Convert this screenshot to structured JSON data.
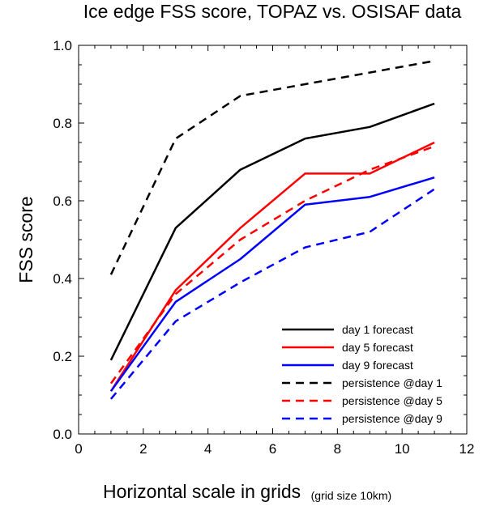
{
  "chart_data": {
    "type": "line",
    "title": "Ice edge FSS score, TOPAZ vs. OSISAF data",
    "xlabel": "Horizontal scale in grids",
    "xlabel_note": "(grid size 10km)",
    "ylabel": "FSS score",
    "xlim": [
      0,
      12
    ],
    "ylim": [
      0,
      1.0
    ],
    "xticks": [
      "0",
      "2",
      "4",
      "6",
      "8",
      "10",
      "12"
    ],
    "yticks": [
      "0.0",
      "0.2",
      "0.4",
      "0.6",
      "0.8",
      "1.0"
    ],
    "grid": false,
    "legend_position": "bottom-right",
    "x": [
      1,
      3,
      5,
      7,
      9,
      11
    ],
    "series": [
      {
        "name": "day 1 forecast",
        "color": "#000000",
        "dash": "solid",
        "values": [
          0.19,
          0.53,
          0.68,
          0.76,
          0.79,
          0.85
        ]
      },
      {
        "name": "day 5 forecast",
        "color": "#ff0000",
        "dash": "solid",
        "values": [
          0.11,
          0.37,
          0.53,
          0.67,
          0.67,
          0.75
        ]
      },
      {
        "name": "day 9 forecast",
        "color": "#0000ff",
        "dash": "solid",
        "values": [
          0.11,
          0.34,
          0.45,
          0.59,
          0.61,
          0.66
        ]
      },
      {
        "name": "persistence @day 1",
        "color": "#000000",
        "dash": "dashed",
        "values": [
          0.41,
          0.76,
          0.87,
          0.9,
          0.93,
          0.96
        ]
      },
      {
        "name": "persistence @day 5",
        "color": "#ff0000",
        "dash": "dashed",
        "values": [
          0.13,
          0.36,
          0.5,
          0.6,
          0.68,
          0.74
        ]
      },
      {
        "name": "persistence @day 9",
        "color": "#0000ff",
        "dash": "dashed",
        "values": [
          0.09,
          0.29,
          0.39,
          0.48,
          0.52,
          0.63
        ]
      }
    ]
  }
}
